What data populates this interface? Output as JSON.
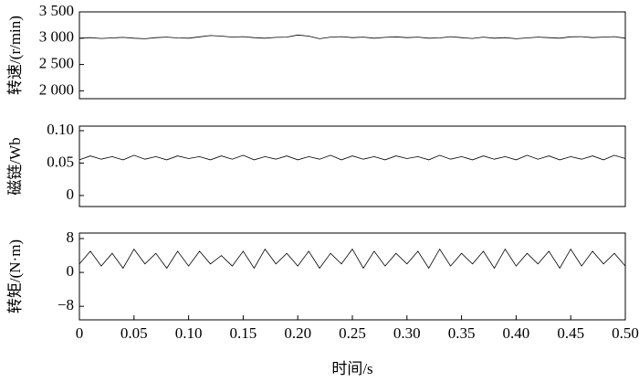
{
  "chart_data": [
    {
      "type": "line",
      "ylabel": "转速/(r/min)",
      "ylim": [
        1850,
        3500
      ],
      "yticks": [
        {
          "value": 2000,
          "label": "2 000"
        },
        {
          "value": 2500,
          "label": "2 500"
        },
        {
          "value": 3000,
          "label": "3 000"
        },
        {
          "value": 3500,
          "label": "3 500"
        }
      ],
      "xlim": [
        0,
        0.5
      ],
      "x": [
        0,
        0.01,
        0.02,
        0.03,
        0.04,
        0.05,
        0.06,
        0.07,
        0.08,
        0.09,
        0.1,
        0.11,
        0.12,
        0.13,
        0.14,
        0.15,
        0.16,
        0.17,
        0.18,
        0.19,
        0.2,
        0.21,
        0.22,
        0.23,
        0.24,
        0.25,
        0.26,
        0.27,
        0.28,
        0.29,
        0.3,
        0.31,
        0.32,
        0.33,
        0.34,
        0.35,
        0.36,
        0.37,
        0.38,
        0.39,
        0.4,
        0.41,
        0.42,
        0.43,
        0.44,
        0.45,
        0.46,
        0.47,
        0.48,
        0.49,
        0.5
      ],
      "series": [
        {
          "color": "#000000",
          "values": [
            3000,
            3010,
            2995,
            3005,
            3015,
            3000,
            2990,
            3010,
            3020,
            3005,
            3000,
            3025,
            3050,
            3040,
            3020,
            3030,
            3010,
            3000,
            3015,
            3020,
            3060,
            3040,
            2990,
            3020,
            3030,
            3010,
            3020,
            3000,
            3015,
            3025,
            3010,
            3020,
            3000,
            3005,
            3030,
            3010,
            2995,
            3020,
            3000,
            3010,
            2990,
            3005,
            3020,
            3010,
            3000,
            3025,
            3030,
            3010,
            3020,
            3030,
            3000
          ]
        }
      ]
    },
    {
      "type": "line",
      "ylabel": "磁链/Wb",
      "ylim": [
        -0.017,
        0.107
      ],
      "yticks": [
        0,
        0.05,
        {
          "value": 0.1,
          "label": "0.10"
        }
      ],
      "xlim": [
        0,
        0.5
      ],
      "x": [
        0,
        0.01,
        0.02,
        0.03,
        0.04,
        0.05,
        0.06,
        0.07,
        0.08,
        0.09,
        0.1,
        0.11,
        0.12,
        0.13,
        0.14,
        0.15,
        0.16,
        0.17,
        0.18,
        0.19,
        0.2,
        0.21,
        0.22,
        0.23,
        0.24,
        0.25,
        0.26,
        0.27,
        0.28,
        0.29,
        0.3,
        0.31,
        0.32,
        0.33,
        0.34,
        0.35,
        0.36,
        0.37,
        0.38,
        0.39,
        0.4,
        0.41,
        0.42,
        0.43,
        0.44,
        0.45,
        0.46,
        0.47,
        0.48,
        0.49,
        0.5
      ],
      "series": [
        {
          "color": "#000000",
          "values": [
            0.055,
            0.061,
            0.056,
            0.06,
            0.055,
            0.062,
            0.056,
            0.06,
            0.055,
            0.061,
            0.057,
            0.06,
            0.055,
            0.061,
            0.056,
            0.062,
            0.055,
            0.06,
            0.056,
            0.061,
            0.055,
            0.06,
            0.056,
            0.062,
            0.055,
            0.061,
            0.056,
            0.06,
            0.055,
            0.061,
            0.057,
            0.06,
            0.055,
            0.062,
            0.056,
            0.06,
            0.055,
            0.061,
            0.056,
            0.06,
            0.055,
            0.062,
            0.056,
            0.061,
            0.055,
            0.06,
            0.056,
            0.061,
            0.055,
            0.062,
            0.057
          ]
        }
      ]
    },
    {
      "type": "line",
      "ylabel": "转矩/(N·m)",
      "ylim": [
        -11.2,
        9.3
      ],
      "yticks": [
        {
          "value": -8,
          "label": "−8"
        },
        0,
        8
      ],
      "xlim": [
        0,
        0.5
      ],
      "xticks": [
        0,
        0.05,
        {
          "value": 0.1,
          "label": "0.10"
        },
        0.15,
        {
          "value": 0.2,
          "label": "0.20"
        },
        0.25,
        {
          "value": 0.3,
          "label": "0.30"
        },
        0.35,
        {
          "value": 0.4,
          "label": "0.40"
        },
        0.45,
        {
          "value": 0.5,
          "label": "0.50"
        }
      ],
      "xlabel": "时间/s",
      "x": [
        0,
        0.01,
        0.02,
        0.03,
        0.04,
        0.05,
        0.06,
        0.07,
        0.08,
        0.09,
        0.1,
        0.11,
        0.12,
        0.13,
        0.14,
        0.15,
        0.16,
        0.17,
        0.18,
        0.19,
        0.2,
        0.21,
        0.22,
        0.23,
        0.24,
        0.25,
        0.26,
        0.27,
        0.28,
        0.29,
        0.3,
        0.31,
        0.32,
        0.33,
        0.34,
        0.35,
        0.36,
        0.37,
        0.38,
        0.39,
        0.4,
        0.41,
        0.42,
        0.43,
        0.44,
        0.45,
        0.46,
        0.47,
        0.48,
        0.49,
        0.5
      ],
      "series": [
        {
          "color": "#000000",
          "values": [
            2,
            5,
            1.5,
            4.5,
            1,
            5.5,
            2,
            4.5,
            1,
            5,
            1.5,
            5,
            2,
            4,
            1.5,
            5,
            1,
            5.5,
            2,
            4.5,
            1.5,
            5,
            1,
            4.5,
            2,
            5.5,
            1,
            5,
            1.5,
            4.5,
            2,
            5,
            1,
            5.5,
            1.5,
            4.5,
            2,
            5,
            1,
            5.5,
            1.5,
            4.5,
            2,
            5,
            1,
            5.5,
            1.5,
            5,
            2,
            4.5,
            1.5
          ]
        }
      ]
    }
  ]
}
